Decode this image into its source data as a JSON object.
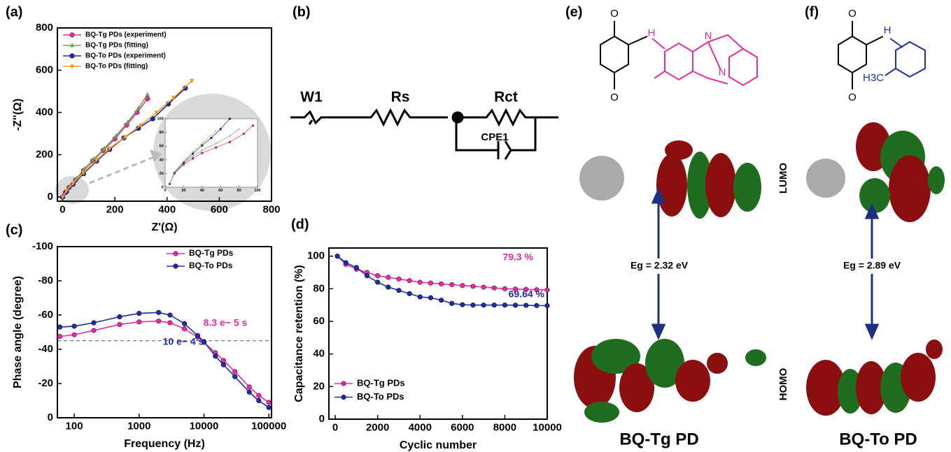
{
  "chart_data": [
    {
      "type": "line",
      "label": "(a)",
      "xlabel": "Z'(Ω)",
      "ylabel": "-Z''(Ω)",
      "xlim": [
        -20,
        800
      ],
      "ylim": [
        -20,
        800
      ],
      "xticks": [
        0,
        200,
        400,
        600,
        800
      ],
      "yticks": [
        0,
        200,
        400,
        600,
        800
      ],
      "legend": "upper left",
      "series": [
        {
          "name": "BQ-Tg PDs (experiment)",
          "color": "#e0309f",
          "marker": "circle",
          "x": [
            0,
            10,
            25,
            50,
            80,
            115,
            155,
            200,
            245,
            285,
            325
          ],
          "values": [
            0,
            20,
            45,
            80,
            125,
            170,
            220,
            275,
            340,
            400,
            465
          ]
        },
        {
          "name": "BQ-Tg PDs (fitting)",
          "color": "#6aa84f",
          "marker": "triangle",
          "x": [
            0,
            12,
            28,
            55,
            85,
            120,
            160,
            205,
            250,
            290,
            325
          ],
          "values": [
            0,
            25,
            50,
            90,
            135,
            180,
            230,
            290,
            355,
            420,
            485
          ]
        },
        {
          "name": "BQ-To PDs (experiment)",
          "color": "#1f2ea0",
          "marker": "circle",
          "x": [
            0,
            15,
            40,
            80,
            130,
            180,
            235,
            290,
            345,
            405,
            470
          ],
          "values": [
            0,
            25,
            60,
            110,
            170,
            225,
            280,
            325,
            370,
            440,
            515
          ]
        },
        {
          "name": "BQ-To PDs (fitting)",
          "color": "#f39c1f",
          "marker": "triangle-down",
          "x": [
            0,
            15,
            40,
            80,
            130,
            180,
            240,
            300,
            360,
            425,
            495
          ],
          "values": [
            0,
            30,
            65,
            115,
            175,
            230,
            285,
            340,
            400,
            470,
            550
          ]
        }
      ]
    },
    {
      "type": "line",
      "xlim": [
        0,
        100
      ],
      "ylim": [
        0,
        100
      ],
      "xticks": [
        0,
        20,
        40,
        60,
        80,
        100
      ],
      "yticks": [
        0,
        20,
        40,
        60,
        80,
        100
      ],
      "series": [
        {
          "color": "#e0309f",
          "marker": "circle",
          "x": [
            5,
            10,
            20,
            30,
            40,
            55,
            70,
            85,
            95
          ],
          "values": [
            5,
            20,
            33,
            42,
            50,
            58,
            66,
            78,
            90
          ]
        },
        {
          "color": "#6aa84f",
          "marker": "triangle",
          "x": [
            5,
            10,
            20,
            30,
            40,
            55,
            70,
            80
          ],
          "values": [
            5,
            20,
            34,
            45,
            54,
            64,
            75,
            85
          ]
        },
        {
          "color": "#1f2ea0",
          "marker": "circle",
          "x": [
            5,
            10,
            20,
            30,
            40,
            50,
            60,
            70
          ],
          "values": [
            5,
            21,
            36,
            49,
            61,
            72,
            85,
            100
          ]
        },
        {
          "color": "#f39c1f",
          "marker": "triangle-down",
          "x": [
            5,
            10,
            20,
            30,
            40,
            55
          ],
          "values": [
            5,
            22,
            38,
            52,
            64,
            82
          ]
        }
      ]
    },
    {
      "type": "line",
      "label": "(c)",
      "xlabel": "Frequency (Hz)",
      "ylabel": "Phase angle (degree)",
      "xscale": "log",
      "xlim": [
        55,
        110000
      ],
      "ylim": [
        0,
        -100
      ],
      "xticks": [
        100,
        1000,
        10000,
        100000
      ],
      "yticks": [
        0,
        -20,
        -40,
        -60,
        -80,
        -100
      ],
      "hline": -45,
      "legend": "upper right",
      "x": [
        60,
        100,
        200,
        500,
        1000,
        2000,
        3000,
        5000,
        8000,
        10000,
        15000,
        20000,
        30000,
        50000,
        70000,
        100000
      ],
      "series": [
        {
          "name": "BQ-Tg PDs",
          "color": "#e0309f",
          "marker": "circle",
          "values": [
            -47.5,
            -48.5,
            -51,
            -54.5,
            -56,
            -56.5,
            -55.5,
            -52,
            -47,
            -44,
            -38,
            -33.5,
            -27,
            -18,
            -13,
            -9
          ]
        },
        {
          "name": "BQ-To PDs",
          "color": "#1f2ea0",
          "marker": "circle",
          "values": [
            -53,
            -53.5,
            -55.5,
            -59,
            -61,
            -61.5,
            -60,
            -55,
            -48,
            -44.5,
            -36,
            -31,
            -24,
            -15,
            -10,
            -6
          ]
        }
      ],
      "annotations": [
        {
          "text": "8.3 e− 5 s",
          "color": "#e0309f"
        },
        {
          "text": "10 e− 4 s",
          "color": "#1f2ea0"
        }
      ]
    },
    {
      "type": "line",
      "label": "(d)",
      "xlabel": "Cyclic number",
      "ylabel": "Capacitance retention (%)",
      "xlim": [
        -300,
        10000
      ],
      "ylim": [
        0,
        105
      ],
      "xticks": [
        0,
        2000,
        4000,
        6000,
        8000,
        10000
      ],
      "yticks": [
        0,
        20,
        40,
        60,
        80,
        100
      ],
      "legend": "lower left",
      "x": [
        100,
        500,
        1000,
        1500,
        2000,
        2500,
        3000,
        3500,
        4000,
        4500,
        5000,
        5500,
        6000,
        6500,
        7000,
        7500,
        8000,
        8500,
        9000,
        9500,
        10000
      ],
      "series": [
        {
          "name": "BQ-Tg PDs",
          "color": "#e0309f",
          "marker": "circle",
          "values": [
            100,
            95,
            92,
            90,
            88,
            87,
            86,
            85,
            84,
            83.5,
            83,
            82.5,
            82,
            81.5,
            81,
            80.5,
            80,
            79.8,
            79.6,
            79.4,
            79.3
          ]
        },
        {
          "name": "BQ-To PDs",
          "color": "#1f2ea0",
          "marker": "circle",
          "values": [
            100,
            96,
            93,
            88,
            84,
            81,
            79,
            77,
            75,
            74.5,
            73,
            71,
            70.2,
            70,
            70,
            70,
            70,
            69.9,
            69.8,
            69.7,
            69.64
          ]
        }
      ],
      "annotations": [
        {
          "text": "79.3 %",
          "color": "#e0309f"
        },
        {
          "text": "69.64 %",
          "color": "#1f2ea0"
        }
      ]
    }
  ],
  "circuit": {
    "label": "(b)",
    "elements": [
      "W1",
      "Rs",
      "Rct",
      "CPE1"
    ]
  },
  "molecules": [
    {
      "label": "(e)",
      "atoms": [
        "O",
        "H",
        "N",
        "N",
        "O"
      ],
      "lumo": "LUMO",
      "homo": "HOMO",
      "gap": "Eg = 2.32 eV",
      "name": "BQ-Tg PD"
    },
    {
      "label": "(f)",
      "atoms": [
        "O",
        "H",
        "H3C",
        "O"
      ],
      "lumo": "LUMO",
      "homo": "HOMO",
      "gap": "Eg = 2.89 eV",
      "name": "BQ-To PD"
    }
  ]
}
